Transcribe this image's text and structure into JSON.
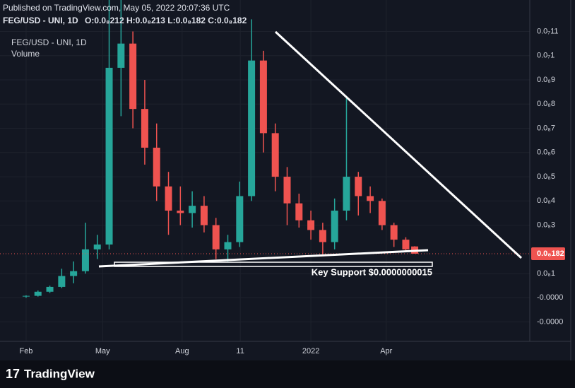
{
  "header": {
    "published": "Published on TradingView.com, May 05, 2022 20:07:36 UTC",
    "symbol": "FEG/USD - UNI, 1D",
    "ohlc": "O:0.0₈212 H:0.0₈213 L:0.0₈182 C:0.0₈182"
  },
  "chart_data": {
    "type": "candlestick",
    "legend": [
      "FEG/USD - UNI, 1D",
      "Volume"
    ],
    "x": [
      0,
      2,
      4,
      6,
      8,
      10,
      12,
      14,
      16,
      18,
      20,
      22,
      24,
      26,
      28,
      30,
      32,
      34,
      36,
      38,
      40,
      42,
      44,
      46,
      48,
      50,
      52,
      54,
      56,
      58,
      60,
      62,
      64,
      65.5
    ],
    "open": [
      5e-11,
      8e-11,
      2.5e-10,
      4.5e-10,
      9e-10,
      1.1e-09,
      2e-09,
      2.2e-09,
      9.5e-09,
      1.05e-08,
      7.8e-09,
      6.2e-09,
      4.6e-09,
      3.6e-09,
      3.5e-09,
      3.8e-09,
      3e-09,
      2e-09,
      2.3e-09,
      4.2e-09,
      9.8e-09,
      6.8e-09,
      5e-09,
      3.9e-09,
      3.2e-09,
      2.8e-09,
      2.3e-09,
      3.6e-09,
      5e-09,
      4.2e-09,
      4e-09,
      3e-09,
      2.4e-09,
      2.12e-09
    ],
    "high": [
      1e-10,
      3e-10,
      5e-10,
      1.2e-09,
      1.5e-09,
      3.1e-09,
      2.6e-09,
      1.23e-08,
      1.23e-08,
      1.1e-08,
      9e-09,
      7.2e-09,
      5.2e-09,
      4.6e-09,
      4.4e-09,
      4.2e-09,
      3.3e-09,
      2.6e-09,
      4.8e-09,
      1.15e-08,
      1.02e-08,
      7.2e-09,
      5.4e-09,
      4.3e-09,
      3.6e-09,
      3.1e-09,
      4.1e-09,
      8.3e-09,
      5.2e-09,
      4.6e-09,
      4.1e-09,
      3.1e-09,
      2.5e-09,
      2.13e-09
    ],
    "low": [
      0.0,
      5e-11,
      2e-10,
      4e-10,
      6e-10,
      1e-09,
      1.6e-09,
      2e-09,
      7.5e-09,
      7e-09,
      5.5e-09,
      4e-09,
      2.6e-09,
      3e-09,
      2.9e-09,
      2.7e-09,
      1.6e-09,
      1.5e-09,
      2.1e-09,
      4e-09,
      6e-09,
      4.4e-09,
      3e-09,
      2.9e-09,
      2.4e-09,
      1.8e-09,
      2e-09,
      3.2e-09,
      3.4e-09,
      3.5e-09,
      2.8e-09,
      2.1e-09,
      1.9e-09,
      1.82e-09
    ],
    "close": [
      8e-11,
      2.5e-10,
      4.5e-10,
      9e-10,
      1.1e-09,
      2e-09,
      2.2e-09,
      9.5e-09,
      1.05e-08,
      7.8e-09,
      6.2e-09,
      4.6e-09,
      3.6e-09,
      3.5e-09,
      3.8e-09,
      3e-09,
      2e-09,
      2.3e-09,
      4.2e-09,
      9.8e-09,
      6.8e-09,
      5e-09,
      3.9e-09,
      3.2e-09,
      2.8e-09,
      2.3e-09,
      3.6e-09,
      5e-09,
      4.2e-09,
      4e-09,
      3e-09,
      2.4e-09,
      2e-09,
      1.82e-09
    ],
    "up_color": "#26a69a",
    "down_color": "#ef5350",
    "xlim": [
      -4.4,
      84.9
    ],
    "xticks": [
      {
        "value": 0,
        "label": "Feb"
      },
      {
        "value": 12.9,
        "label": "May"
      },
      {
        "value": 26.3,
        "label": "Aug"
      },
      {
        "value": 36.1,
        "label": "11"
      },
      {
        "value": 48,
        "label": "2022"
      },
      {
        "value": 60.7,
        "label": "Apr"
      }
    ],
    "ylim": [
      -1.8e-09,
      1.23e-08
    ],
    "yticks": [
      {
        "value": -1e-09,
        "label": "-0.0000"
      },
      {
        "value": 0,
        "label": "-0.0000"
      },
      {
        "value": 1e-09,
        "label": "0.0₈1"
      },
      {
        "value": 3e-09,
        "label": "0.0₈3"
      },
      {
        "value": 4e-09,
        "label": "0.0₈4"
      },
      {
        "value": 5e-09,
        "label": "0.0₈5"
      },
      {
        "value": 6e-09,
        "label": "0.0₈6"
      },
      {
        "value": 7e-09,
        "label": "0.0₈7"
      },
      {
        "value": 8e-09,
        "label": "0.0₈8"
      },
      {
        "value": 9e-09,
        "label": "0.0₈9"
      },
      {
        "value": 1e-08,
        "label": "0.0₇1"
      },
      {
        "value": 1.1e-08,
        "label": "0.0₇11"
      }
    ],
    "last_price": {
      "value": 1.82e-09,
      "label": "0.0₈182"
    },
    "annotation": "Key Support $0.0000000015",
    "grid": true
  },
  "footer": {
    "brand": "TradingView"
  }
}
